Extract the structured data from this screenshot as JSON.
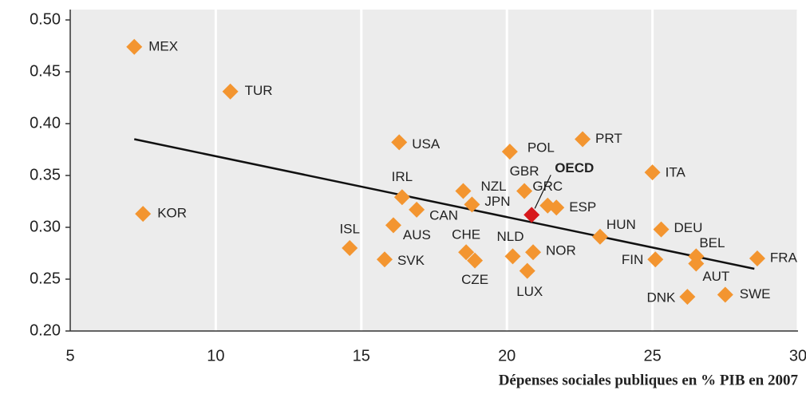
{
  "chart_data": {
    "type": "scatter",
    "x_label": "Dépenses sociales publiques en % PIB en 2007",
    "xlim": [
      5,
      30
    ],
    "xticks": [
      5,
      10,
      15,
      20,
      25,
      30
    ],
    "ylim": [
      0.2,
      0.5
    ],
    "yticks": [
      {
        "value": 0.2,
        "label": "0.20"
      },
      {
        "value": 0.25,
        "label": "0.25"
      },
      {
        "value": 0.3,
        "label": "0.30"
      },
      {
        "value": 0.35,
        "label": "0.35"
      },
      {
        "value": 0.4,
        "label": "0.40"
      },
      {
        "value": 0.45,
        "label": "0.45"
      },
      {
        "value": 0.5,
        "label": "0.50"
      }
    ],
    "grid": true,
    "series": [
      {
        "color": "#f39530",
        "labels": [
          "MEX",
          "TUR",
          "KOR",
          "USA",
          "IRL",
          "ISL",
          "SVK",
          "AUS",
          "CAN",
          "CHE",
          "CZE",
          "JPN",
          "NZL",
          "POL",
          "GBR",
          "NLD",
          "NOR",
          "LUX",
          "GRC",
          "ESP",
          "PRT",
          "ITA",
          "HUN",
          "DEU",
          "FIN",
          "BEL",
          "AUT",
          "DNK",
          "SWE",
          "FRA"
        ],
        "x": [
          7.2,
          10.5,
          7.5,
          16.3,
          16.4,
          14.6,
          15.8,
          16.1,
          16.9,
          18.6,
          18.9,
          18.8,
          18.5,
          20.1,
          20.6,
          20.2,
          20.9,
          20.7,
          21.4,
          21.7,
          22.6,
          25.0,
          23.2,
          25.3,
          25.1,
          26.5,
          26.5,
          26.2,
          27.5,
          28.6
        ],
        "values": [
          0.474,
          0.431,
          0.313,
          0.382,
          0.329,
          0.28,
          0.269,
          0.302,
          0.317,
          0.276,
          0.268,
          0.322,
          0.335,
          0.373,
          0.335,
          0.272,
          0.276,
          0.258,
          0.321,
          0.319,
          0.385,
          0.353,
          0.291,
          0.298,
          0.269,
          0.272,
          0.265,
          0.233,
          0.235,
          0.27
        ]
      },
      {
        "color": "#d7191c",
        "labels": [
          "OECD"
        ],
        "x": [
          20.85
        ],
        "values": [
          0.312
        ]
      }
    ],
    "trendline": {
      "color": "#111",
      "x": [
        7.2,
        28.5
      ],
      "values": [
        0.385,
        0.26
      ]
    }
  }
}
